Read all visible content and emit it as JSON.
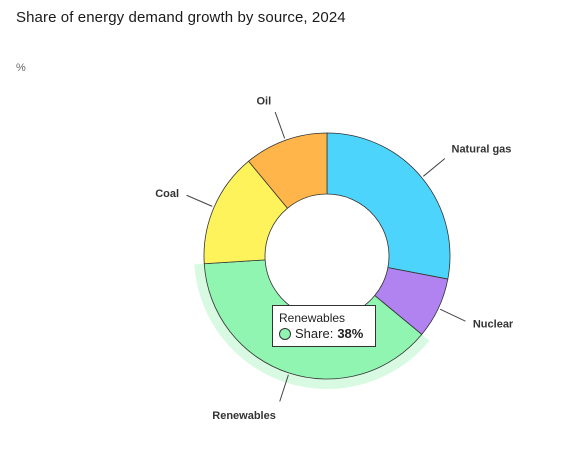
{
  "header": {
    "title": "Share of energy demand growth by source, 2024",
    "unit": "%"
  },
  "chart_data": {
    "type": "pie",
    "variant": "donut",
    "title": "Share of energy demand growth by source, 2024",
    "unit": "%",
    "slices": [
      {
        "label": "Natural gas",
        "value": 28,
        "color": "#4dd4fc"
      },
      {
        "label": "Nuclear",
        "value": 8,
        "color": "#b083f0"
      },
      {
        "label": "Renewables",
        "value": 38,
        "color": "#90f5b0"
      },
      {
        "label": "Coal",
        "value": 15,
        "color": "#fff35c"
      },
      {
        "label": "Oil",
        "value": 11,
        "color": "#ffb54a"
      }
    ],
    "highlighted": "Renewables"
  },
  "tooltip": {
    "series": "Renewables",
    "metric": "Share:",
    "value": "38%"
  }
}
